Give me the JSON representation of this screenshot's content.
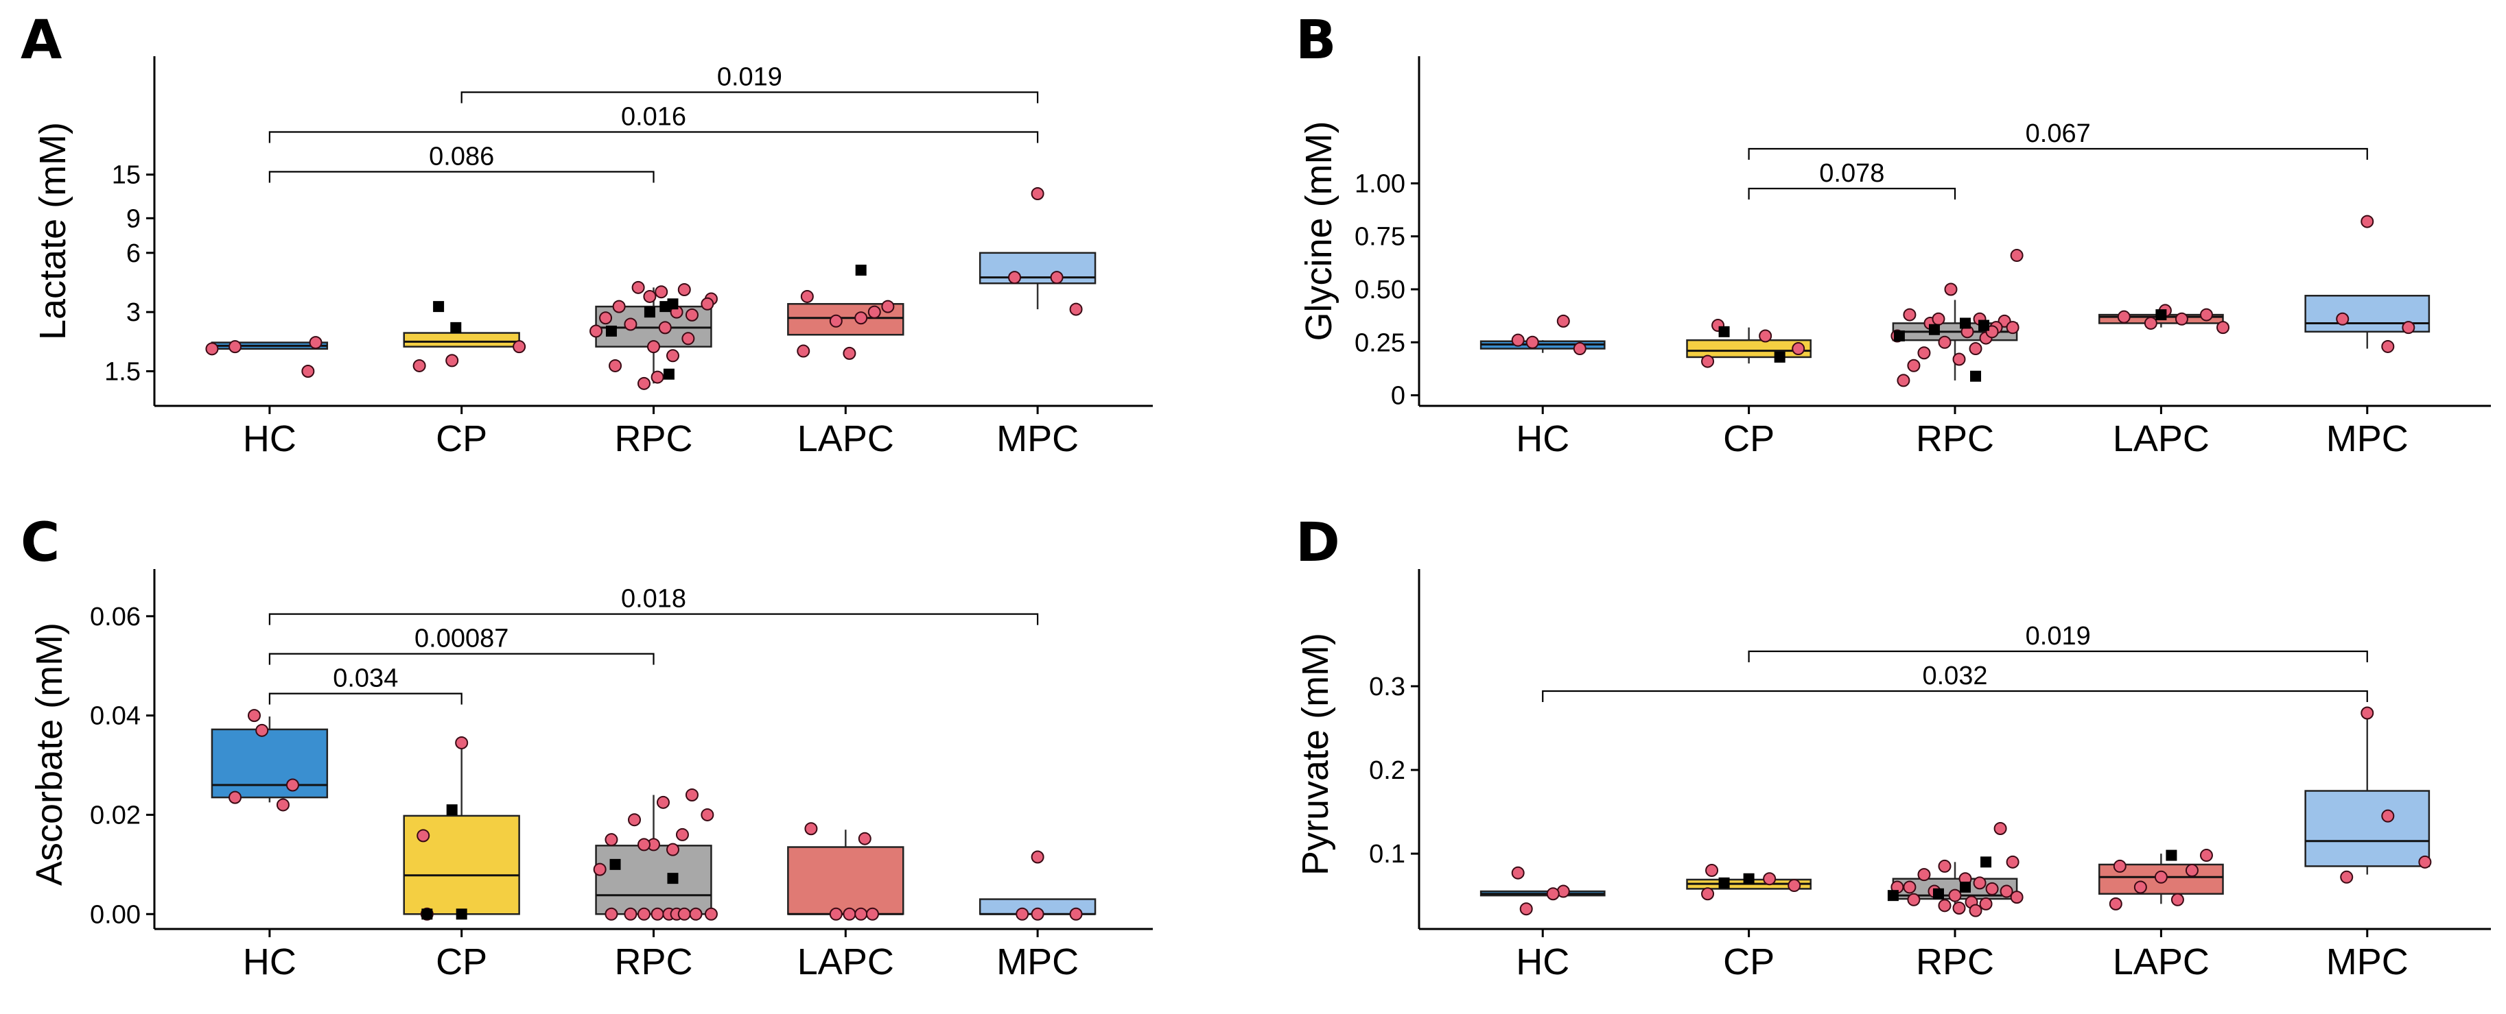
{
  "colors": {
    "HC": "#3a8fd0",
    "CP": "#f4cf42",
    "RPC": "#a8a8a8",
    "LAPC": "#e07a74",
    "MPC": "#9cc2ea",
    "point": "#e8607a",
    "square": "#000000"
  },
  "chart_data": [
    {
      "panel": "A",
      "type": "box",
      "ylabel": "Lactate (mM)",
      "yscale": "log",
      "ylim": [
        1.0,
        60
      ],
      "yticks": [
        1.5,
        3,
        6,
        9,
        15
      ],
      "ytick_labels": [
        "1.5",
        "3",
        "6",
        "9",
        "15"
      ],
      "categories": [
        "HC",
        "CP",
        "RPC",
        "LAPC",
        "MPC"
      ],
      "boxes": [
        {
          "group": "HC",
          "q1": 1.95,
          "median": 2.02,
          "q3": 2.1,
          "whisker_low": 1.95,
          "whisker_high": 2.1
        },
        {
          "group": "CP",
          "q1": 2.0,
          "median": 2.12,
          "q3": 2.35,
          "whisker_low": 2.0,
          "whisker_high": 2.35
        },
        {
          "group": "RPC",
          "q1": 2.0,
          "median": 2.5,
          "q3": 3.2,
          "whisker_low": 1.3,
          "whisker_high": 4.0
        },
        {
          "group": "LAPC",
          "q1": 2.3,
          "median": 2.8,
          "q3": 3.3,
          "whisker_low": 2.3,
          "whisker_high": 3.3
        },
        {
          "group": "MPC",
          "q1": 4.2,
          "median": 4.5,
          "q3": 6.0,
          "whisker_low": 3.1,
          "whisker_high": 6.0
        }
      ],
      "points": [
        {
          "group": "HC",
          "values": [
            1.95,
            2.0,
            2.1,
            1.5
          ],
          "offsets": [
            -0.3,
            -0.18,
            0.24,
            0.2
          ]
        },
        {
          "group": "CP",
          "values": [
            1.7,
            2.0,
            1.6
          ],
          "offsets": [
            -0.05,
            0.3,
            -0.22
          ]
        },
        {
          "group": "RPC",
          "values": [
            4.0,
            3.8,
            3.5,
            3.2,
            3.0,
            2.9,
            2.8,
            2.6,
            2.5,
            2.4,
            2.2,
            2.0,
            1.8,
            1.6,
            1.4,
            1.3,
            3.3,
            3.6,
            3.9
          ],
          "offsets": [
            -0.08,
            0.04,
            0.3,
            -0.18,
            0.12,
            0.2,
            -0.25,
            -0.12,
            0.06,
            -0.3,
            0.18,
            0.0,
            0.1,
            -0.2,
            0.02,
            -0.05,
            0.28,
            -0.02,
            0.16
          ]
        },
        {
          "group": "LAPC",
          "values": [
            3.6,
            3.2,
            3.0,
            2.8,
            2.7,
            1.9,
            1.85
          ],
          "offsets": [
            -0.2,
            0.22,
            0.15,
            0.08,
            -0.05,
            -0.22,
            0.02
          ]
        },
        {
          "group": "MPC",
          "values": [
            12.0,
            4.5,
            4.5,
            3.1
          ],
          "offsets": [
            0.0,
            -0.12,
            0.1,
            0.2
          ]
        }
      ],
      "squares": [
        {
          "group": "CP",
          "values": [
            3.2,
            2.5
          ],
          "offsets": [
            -0.12,
            -0.03
          ]
        },
        {
          "group": "RPC",
          "values": [
            2.4,
            3.0,
            3.2,
            3.3,
            1.45
          ],
          "offsets": [
            -0.22,
            -0.02,
            0.06,
            0.1,
            0.08
          ]
        },
        {
          "group": "LAPC",
          "values": [
            4.9
          ],
          "offsets": [
            0.08
          ]
        }
      ],
      "comparisons": [
        {
          "from": "HC",
          "to": "RPC",
          "label": "0.086",
          "level": 0
        },
        {
          "from": "HC",
          "to": "MPC",
          "label": "0.016",
          "level": 1
        },
        {
          "from": "CP",
          "to": "MPC",
          "label": "0.019",
          "level": 2
        }
      ]
    },
    {
      "panel": "B",
      "type": "box",
      "ylabel": "Glycine (mM)",
      "yscale": "linear",
      "ylim": [
        -0.05,
        1.6
      ],
      "yticks": [
        0,
        0.25,
        0.5,
        0.75,
        1.0
      ],
      "ytick_labels": [
        "0",
        "0.25",
        "0.50",
        "0.75",
        "1.00"
      ],
      "categories": [
        "HC",
        "CP",
        "RPC",
        "LAPC",
        "MPC"
      ],
      "boxes": [
        {
          "group": "HC",
          "q1": 0.22,
          "median": 0.24,
          "q3": 0.255,
          "whisker_low": 0.2,
          "whisker_high": 0.26
        },
        {
          "group": "CP",
          "q1": 0.18,
          "median": 0.21,
          "q3": 0.26,
          "whisker_low": 0.15,
          "whisker_high": 0.32
        },
        {
          "group": "RPC",
          "q1": 0.26,
          "median": 0.3,
          "q3": 0.34,
          "whisker_low": 0.07,
          "whisker_high": 0.45
        },
        {
          "group": "LAPC",
          "q1": 0.34,
          "median": 0.37,
          "q3": 0.38,
          "whisker_low": 0.32,
          "whisker_high": 0.4
        },
        {
          "group": "MPC",
          "q1": 0.3,
          "median": 0.34,
          "q3": 0.47,
          "whisker_low": 0.22,
          "whisker_high": 0.47
        }
      ],
      "points": [
        {
          "group": "HC",
          "values": [
            0.35,
            0.26,
            0.25,
            0.22
          ],
          "offsets": [
            0.1,
            -0.12,
            -0.05,
            0.18
          ]
        },
        {
          "group": "CP",
          "values": [
            0.33,
            0.28,
            0.22,
            0.16
          ],
          "offsets": [
            -0.15,
            0.08,
            0.24,
            -0.2
          ]
        },
        {
          "group": "RPC",
          "values": [
            0.66,
            0.5,
            0.38,
            0.36,
            0.35,
            0.34,
            0.32,
            0.3,
            0.28,
            0.27,
            0.25,
            0.22,
            0.2,
            0.17,
            0.14,
            0.07,
            0.36,
            0.32,
            0.3
          ],
          "offsets": [
            0.3,
            -0.02,
            -0.22,
            0.12,
            0.24,
            -0.12,
            0.2,
            0.06,
            -0.28,
            0.15,
            -0.05,
            0.1,
            -0.15,
            0.02,
            -0.2,
            -0.25,
            -0.08,
            0.28,
            0.18
          ]
        },
        {
          "group": "LAPC",
          "values": [
            0.4,
            0.38,
            0.37,
            0.36,
            0.34,
            0.32
          ],
          "offsets": [
            0.02,
            0.22,
            -0.18,
            0.1,
            -0.05,
            0.3
          ]
        },
        {
          "group": "MPC",
          "values": [
            0.82,
            0.36,
            0.32,
            0.23
          ],
          "offsets": [
            0.0,
            -0.12,
            0.2,
            0.1
          ]
        }
      ],
      "squares": [
        {
          "group": "CP",
          "values": [
            0.3,
            0.18
          ],
          "offsets": [
            -0.12,
            0.15
          ]
        },
        {
          "group": "RPC",
          "values": [
            0.28,
            0.31,
            0.34,
            0.33,
            0.09
          ],
          "offsets": [
            -0.27,
            -0.1,
            0.05,
            0.14,
            0.1
          ]
        },
        {
          "group": "LAPC",
          "values": [
            0.38
          ],
          "offsets": [
            0.0
          ]
        }
      ],
      "comparisons": [
        {
          "from": "CP",
          "to": "RPC",
          "label": "0.078",
          "level": 0
        },
        {
          "from": "CP",
          "to": "MPC",
          "label": "0.067",
          "level": 1
        }
      ]
    },
    {
      "panel": "C",
      "type": "box",
      "ylabel": "Ascorbate (mM)",
      "yscale": "linear",
      "ylim": [
        -0.003,
        0.0695
      ],
      "yticks": [
        0,
        0.02,
        0.04,
        0.06
      ],
      "ytick_labels": [
        "0.00",
        "0.02",
        "0.04",
        "0.06"
      ],
      "categories": [
        "HC",
        "CP",
        "RPC",
        "LAPC",
        "MPC"
      ],
      "boxes": [
        {
          "group": "HC",
          "q1": 0.0235,
          "median": 0.026,
          "q3": 0.0372,
          "whisker_low": 0.0225,
          "whisker_high": 0.0398
        },
        {
          "group": "CP",
          "q1": 0.0,
          "median": 0.0078,
          "q3": 0.0198,
          "whisker_low": 0.0,
          "whisker_high": 0.034
        },
        {
          "group": "RPC",
          "q1": 0.0,
          "median": 0.0038,
          "q3": 0.0138,
          "whisker_low": 0.0,
          "whisker_high": 0.024
        },
        {
          "group": "LAPC",
          "q1": 0.0,
          "median": 0.0,
          "q3": 0.0135,
          "whisker_low": 0.0,
          "whisker_high": 0.017
        },
        {
          "group": "MPC",
          "q1": 0.0,
          "median": 0.0,
          "q3": 0.003,
          "whisker_low": 0.0,
          "whisker_high": 0.003
        }
      ],
      "points": [
        {
          "group": "HC",
          "values": [
            0.04,
            0.037,
            0.026,
            0.0235,
            0.022
          ],
          "offsets": [
            -0.08,
            -0.04,
            0.12,
            -0.18,
            0.07
          ]
        },
        {
          "group": "CP",
          "values": [
            0.0345,
            0.0158,
            0.0
          ],
          "offsets": [
            0.0,
            -0.2,
            -0.18
          ]
        },
        {
          "group": "RPC",
          "values": [
            0.024,
            0.0225,
            0.02,
            0.019,
            0.016,
            0.015,
            0.014,
            0.014,
            0.013,
            0.009,
            0.0,
            0.0,
            0.0,
            0.0,
            0.0,
            0.0,
            0.0,
            0.0,
            0.0
          ],
          "offsets": [
            0.2,
            0.05,
            0.28,
            -0.1,
            0.15,
            -0.22,
            0.0,
            -0.05,
            0.1,
            -0.28,
            -0.22,
            -0.12,
            -0.05,
            0.02,
            0.08,
            0.12,
            0.16,
            0.22,
            0.3
          ]
        },
        {
          "group": "LAPC",
          "values": [
            0.0172,
            0.0152,
            0.0,
            0.0,
            0.0,
            0.0
          ],
          "offsets": [
            -0.18,
            0.1,
            -0.05,
            0.02,
            0.08,
            0.14
          ]
        },
        {
          "group": "MPC",
          "values": [
            0.0115,
            0.0,
            0.0,
            0.0
          ],
          "offsets": [
            0.0,
            -0.08,
            0.0,
            0.2
          ]
        }
      ],
      "squares": [
        {
          "group": "CP",
          "values": [
            0.021,
            0.0,
            0.0
          ],
          "offsets": [
            -0.05,
            0.0,
            -0.18
          ]
        },
        {
          "group": "RPC",
          "values": [
            0.01,
            0.0072
          ],
          "offsets": [
            -0.2,
            0.1
          ]
        }
      ],
      "comparisons": [
        {
          "from": "HC",
          "to": "CP",
          "label": "0.034",
          "level": 0
        },
        {
          "from": "HC",
          "to": "RPC",
          "label": "0.00087",
          "level": 1
        },
        {
          "from": "HC",
          "to": "MPC",
          "label": "0.018",
          "level": 2
        }
      ]
    },
    {
      "panel": "D",
      "type": "box",
      "ylabel": "Pyruvate (mM)",
      "yscale": "linear",
      "ylim": [
        0.01,
        0.44
      ],
      "yticks": [
        0.1,
        0.2,
        0.3
      ],
      "ytick_labels": [
        "0.1",
        "0.2",
        "0.3"
      ],
      "categories": [
        "HC",
        "CP",
        "RPC",
        "LAPC",
        "MPC"
      ],
      "boxes": [
        {
          "group": "HC",
          "q1": 0.05,
          "median": 0.052,
          "q3": 0.055,
          "whisker_low": 0.05,
          "whisker_high": 0.055
        },
        {
          "group": "CP",
          "q1": 0.058,
          "median": 0.064,
          "q3": 0.069,
          "whisker_low": 0.058,
          "whisker_high": 0.072
        },
        {
          "group": "RPC",
          "q1": 0.046,
          "median": 0.05,
          "q3": 0.07,
          "whisker_low": 0.035,
          "whisker_high": 0.09
        },
        {
          "group": "LAPC",
          "q1": 0.052,
          "median": 0.072,
          "q3": 0.087,
          "whisker_low": 0.04,
          "whisker_high": 0.1
        },
        {
          "group": "MPC",
          "q1": 0.085,
          "median": 0.115,
          "q3": 0.175,
          "whisker_low": 0.075,
          "whisker_high": 0.265
        }
      ],
      "points": [
        {
          "group": "HC",
          "values": [
            0.077,
            0.055,
            0.052,
            0.034
          ],
          "offsets": [
            -0.12,
            0.1,
            0.05,
            -0.08
          ]
        },
        {
          "group": "CP",
          "values": [
            0.08,
            0.07,
            0.062,
            0.052
          ],
          "offsets": [
            -0.18,
            0.1,
            0.22,
            -0.2
          ]
        },
        {
          "group": "RPC",
          "values": [
            0.13,
            0.09,
            0.085,
            0.075,
            0.07,
            0.065,
            0.06,
            0.058,
            0.055,
            0.05,
            0.045,
            0.042,
            0.04,
            0.038,
            0.035,
            0.032,
            0.06,
            0.048,
            0.055
          ],
          "offsets": [
            0.22,
            0.28,
            -0.05,
            -0.15,
            0.05,
            0.12,
            -0.28,
            0.18,
            -0.1,
            0.0,
            -0.2,
            0.08,
            0.15,
            -0.05,
            0.02,
            0.1,
            -0.22,
            0.3,
            0.25
          ]
        },
        {
          "group": "LAPC",
          "values": [
            0.098,
            0.085,
            0.08,
            0.072,
            0.06,
            0.045,
            0.04
          ],
          "offsets": [
            0.22,
            -0.2,
            0.15,
            0.0,
            -0.1,
            0.08,
            -0.22
          ]
        },
        {
          "group": "MPC",
          "values": [
            0.268,
            0.145,
            0.09,
            0.072
          ],
          "offsets": [
            0.0,
            0.1,
            0.28,
            -0.1
          ]
        }
      ],
      "squares": [
        {
          "group": "CP",
          "values": [
            0.07,
            0.065
          ],
          "offsets": [
            0.0,
            -0.12
          ]
        },
        {
          "group": "RPC",
          "values": [
            0.09,
            0.06,
            0.052,
            0.05
          ],
          "offsets": [
            0.15,
            0.05,
            -0.08,
            -0.3
          ]
        },
        {
          "group": "LAPC",
          "values": [
            0.098
          ],
          "offsets": [
            0.05
          ]
        }
      ],
      "comparisons": [
        {
          "from": "HC",
          "to": "MPC",
          "label": "0.032",
          "level": 0
        },
        {
          "from": "CP",
          "to": "MPC",
          "label": "0.019",
          "level": 1
        }
      ]
    }
  ]
}
